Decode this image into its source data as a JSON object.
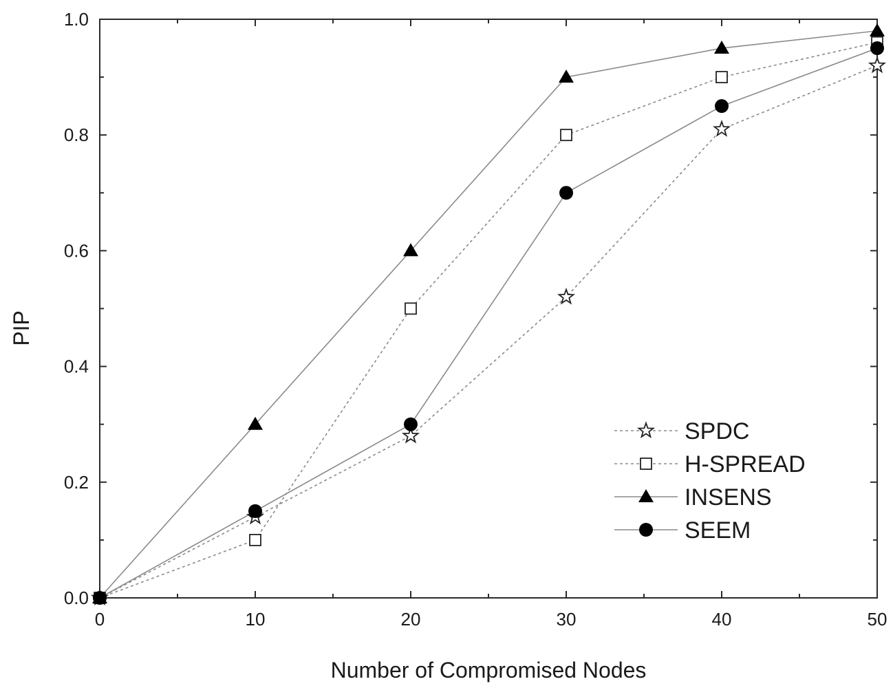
{
  "chart_data": {
    "type": "line",
    "title": "",
    "xlabel": "Number of Compromised Nodes",
    "ylabel": "PIP",
    "xlim": [
      0,
      50
    ],
    "ylim": [
      0,
      1.0
    ],
    "x_ticks": [
      "0",
      "10",
      "20",
      "30",
      "40",
      "50"
    ],
    "y_ticks": [
      "0.0",
      "0.2",
      "0.4",
      "0.6",
      "0.8",
      "1.0"
    ],
    "grid": false,
    "legend_position": "bottom-right",
    "x": [
      0,
      10,
      20,
      30,
      40,
      50
    ],
    "series": [
      {
        "name": "SPDC",
        "marker": "open-star",
        "line": "dotted",
        "color": "#8a8a8a",
        "values": [
          0.0,
          0.14,
          0.28,
          0.52,
          0.81,
          0.92
        ]
      },
      {
        "name": "H-SPREAD",
        "marker": "open-square",
        "line": "dotted",
        "color": "#8a8a8a",
        "values": [
          0.0,
          0.1,
          0.5,
          0.8,
          0.9,
          0.96
        ]
      },
      {
        "name": "INSENS",
        "marker": "filled-triangle",
        "line": "solid",
        "color": "#8a8a8a",
        "values": [
          0.0,
          0.3,
          0.6,
          0.9,
          0.95,
          0.98
        ]
      },
      {
        "name": "SEEM",
        "marker": "filled-circle",
        "line": "solid",
        "color": "#8a8a8a",
        "values": [
          0.0,
          0.15,
          0.3,
          0.7,
          0.85,
          0.95
        ]
      }
    ]
  }
}
